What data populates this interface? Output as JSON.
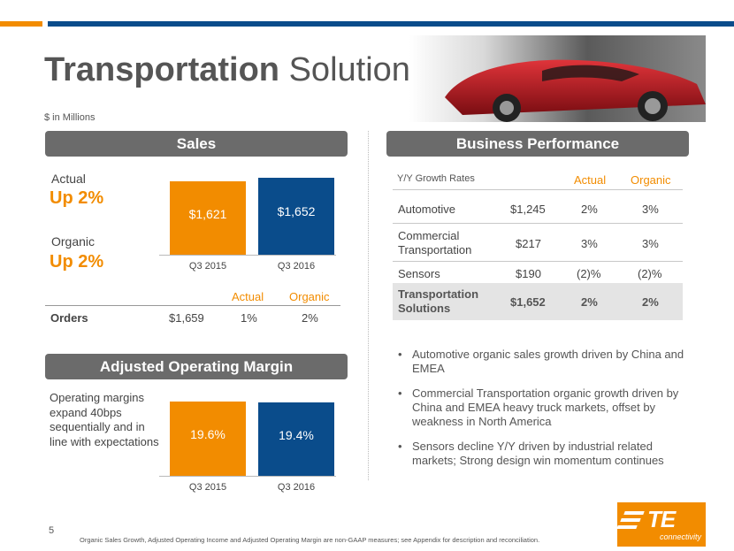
{
  "title": {
    "bold": "Transportation",
    "regular": " Solutions"
  },
  "units": "$ in Millions",
  "sales": {
    "header": "Sales",
    "actual_label": "Actual",
    "actual_value": "Up 2%",
    "organic_label": "Organic",
    "organic_value": "Up 2%",
    "bars": [
      {
        "category": "Q3 2015",
        "value": 1621,
        "label": "$1,621",
        "color": "#f28c00"
      },
      {
        "category": "Q3 2016",
        "value": 1652,
        "label": "$1,652",
        "color": "#0a4c8b"
      }
    ]
  },
  "orders": {
    "col_actual": "Actual",
    "col_organic": "Organic",
    "label": "Orders",
    "value": "$1,659",
    "actual": "1%",
    "organic": "2%"
  },
  "margin": {
    "header": "Adjusted Operating Margin",
    "description": "Operating margins expand 40bps sequentially and in line with expectations",
    "bars": [
      {
        "category": "Q3 2015",
        "value": 19.6,
        "label": "19.6%",
        "color": "#f28c00"
      },
      {
        "category": "Q3 2016",
        "value": 19.4,
        "label": "19.4%",
        "color": "#0a4c8b"
      }
    ]
  },
  "business": {
    "header": "Business Performance",
    "col_label": "Y/Y Growth Rates",
    "col_actual": "Actual",
    "col_organic": "Organic",
    "rows": [
      {
        "name": "Automotive",
        "value": "$1,245",
        "actual": "2%",
        "organic": "3%"
      },
      {
        "name": "Commercial Transportation",
        "value": "$217",
        "actual": "3%",
        "organic": "3%"
      },
      {
        "name": "Sensors",
        "value": "$190",
        "actual": "(2)%",
        "organic": "(2)%"
      }
    ],
    "total": {
      "name": "Transportation Solutions",
      "value": "$1,652",
      "actual": "2%",
      "organic": "2%"
    }
  },
  "bullets": [
    "Automotive organic sales growth driven by China and EMEA",
    "Commercial Transportation organic growth driven by China and EMEA heavy truck markets, offset by weakness in North America",
    "Sensors decline Y/Y driven by industrial related markets; Strong design win momentum continues"
  ],
  "page_number": "5",
  "footnote": "Organic Sales Growth, Adjusted Operating Income and Adjusted Operating Margin are non-GAAP measures; see Appendix for description and reconciliation.",
  "logo": {
    "mark": "TE",
    "sub": "connectivity"
  },
  "chart_data": [
    {
      "type": "bar",
      "title": "Sales",
      "categories": [
        "Q3 2015",
        "Q3 2016"
      ],
      "values": [
        1621,
        1652
      ],
      "data_labels": [
        "$1,621",
        "$1,652"
      ]
    },
    {
      "type": "bar",
      "title": "Adjusted Operating Margin",
      "categories": [
        "Q3 2015",
        "Q3 2016"
      ],
      "values": [
        19.6,
        19.4
      ],
      "data_labels": [
        "19.6%",
        "19.4%"
      ]
    }
  ]
}
